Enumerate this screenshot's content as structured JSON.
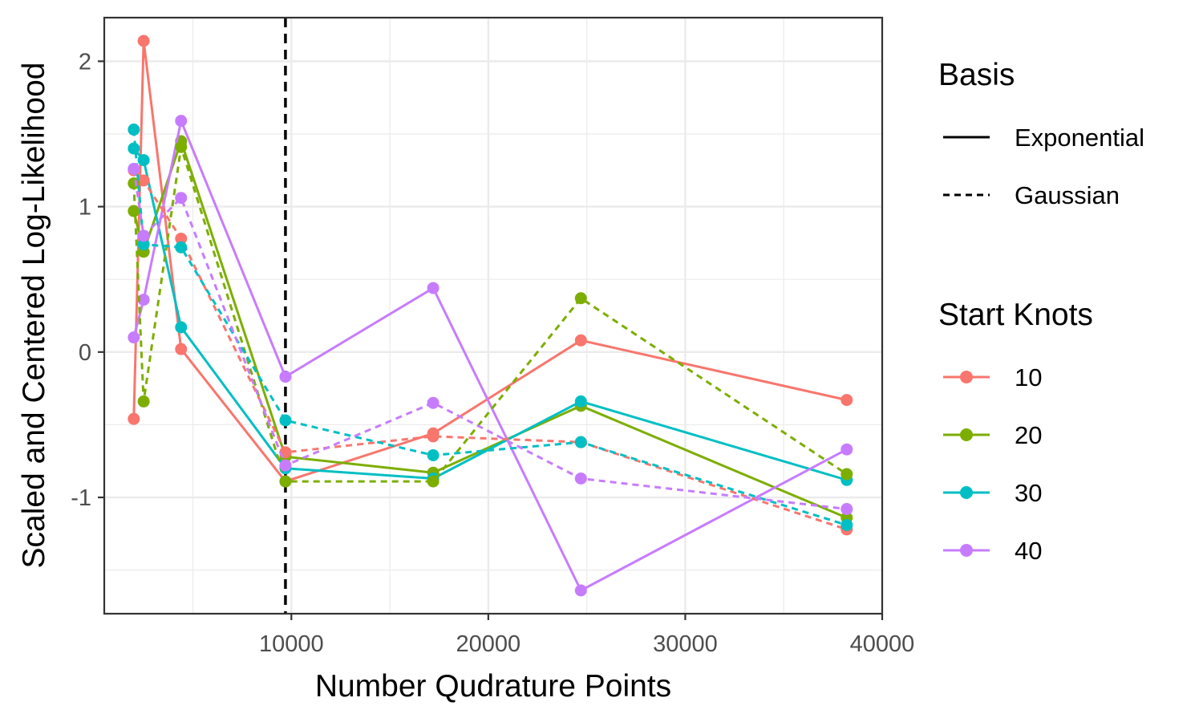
{
  "chart_data": {
    "type": "line",
    "xlabel": "Number Qudrature Points",
    "ylabel": "Scaled and Centered Log-Likelihood",
    "xlim": [
      500,
      40000
    ],
    "ylim": [
      -1.8,
      2.3
    ],
    "x_ticks": [
      10000,
      20000,
      30000,
      40000
    ],
    "x_tick_labels": [
      "10000",
      "20000",
      "30000",
      "40000"
    ],
    "y_ticks": [
      -1,
      0,
      1,
      2
    ],
    "y_tick_labels": [
      "-1",
      "0",
      "1",
      "2"
    ],
    "grid": true,
    "vline": {
      "x": 9700,
      "style": "dashed"
    },
    "legend_position": "right",
    "legend": {
      "basis_title": "Basis",
      "basis_entries": [
        {
          "label": "Exponential",
          "linetype": "solid"
        },
        {
          "label": "Gaussian",
          "linetype": "dashed"
        }
      ],
      "knots_title": "Start Knots",
      "knots_entries": [
        {
          "label": "10",
          "color": "#F8766D"
        },
        {
          "label": "20",
          "color": "#7CAE00"
        },
        {
          "label": "30",
          "color": "#00BFC4"
        },
        {
          "label": "40",
          "color": "#C77CFF"
        }
      ]
    },
    "x": [
      2000,
      2500,
      4400,
      9700,
      17200,
      24700,
      38200
    ],
    "series": [
      {
        "knots": "10",
        "basis": "Exponential",
        "color": "#F8766D",
        "linetype": "solid",
        "values": [
          -0.46,
          2.14,
          0.02,
          -0.89,
          -0.56,
          0.08,
          -0.33
        ]
      },
      {
        "knots": "20",
        "basis": "Exponential",
        "color": "#7CAE00",
        "linetype": "solid",
        "values": [
          0.97,
          0.69,
          1.45,
          -0.72,
          -0.83,
          -0.37,
          -1.14
        ]
      },
      {
        "knots": "30",
        "basis": "Exponential",
        "color": "#00BFC4",
        "linetype": "solid",
        "values": [
          1.4,
          1.32,
          0.17,
          -0.8,
          -0.87,
          -0.34,
          -0.88
        ]
      },
      {
        "knots": "40",
        "basis": "Exponential",
        "color": "#C77CFF",
        "linetype": "solid",
        "values": [
          0.1,
          0.36,
          1.59,
          -0.17,
          0.44,
          -1.64,
          -0.67
        ]
      },
      {
        "knots": "10",
        "basis": "Gaussian",
        "color": "#F8766D",
        "linetype": "dashed",
        "values": [
          1.25,
          1.18,
          0.78,
          -0.69,
          -0.58,
          -0.62,
          -1.22
        ]
      },
      {
        "knots": "20",
        "basis": "Gaussian",
        "color": "#7CAE00",
        "linetype": "dashed",
        "values": [
          1.16,
          -0.34,
          1.41,
          -0.89,
          -0.89,
          0.37,
          -0.84
        ]
      },
      {
        "knots": "30",
        "basis": "Gaussian",
        "color": "#00BFC4",
        "linetype": "dashed",
        "values": [
          1.53,
          0.74,
          0.72,
          -0.47,
          -0.71,
          -0.62,
          -1.19
        ]
      },
      {
        "knots": "40",
        "basis": "Gaussian",
        "color": "#C77CFF",
        "linetype": "dashed",
        "values": [
          1.26,
          0.8,
          1.06,
          -0.78,
          -0.35,
          -0.87,
          -1.08
        ]
      }
    ]
  }
}
